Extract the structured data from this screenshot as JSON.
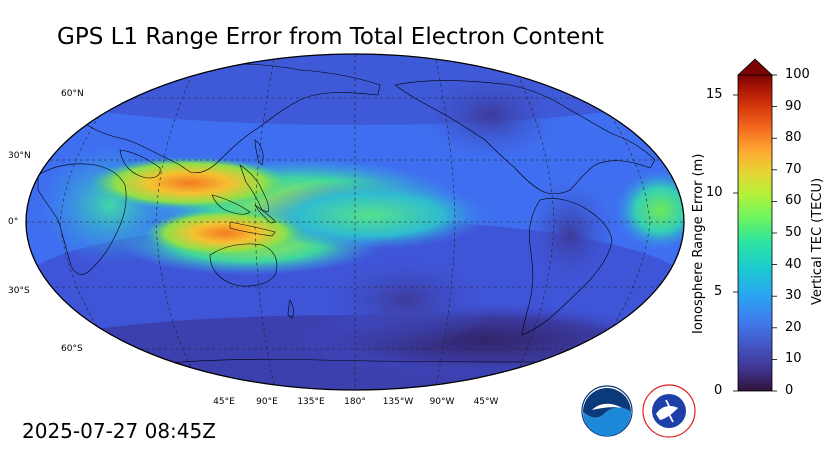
{
  "title": "GPS L1 Range Error from Total Electron Content",
  "timestamp": "2025-07-27 08:45Z",
  "map": {
    "projection": "Robinson",
    "central_longitude": "180°",
    "field": "Vertical TEC",
    "lat_labels": [
      "60°N",
      "30°N",
      "0°",
      "30°S",
      "60°S"
    ],
    "lon_labels": [
      "45°E",
      "90°E",
      "135°E",
      "180°",
      "135°W",
      "90°W",
      "45°W"
    ],
    "ocean_color": "#3355e0",
    "coastline_color": "#000000",
    "graticule_style": "dashed"
  },
  "colorbar": {
    "colormap": "turbo-like",
    "left_axis_label": "Ionosphere Range Error (m)",
    "left_ticks": [
      "0",
      "5",
      "10",
      "15"
    ],
    "right_axis_label": "Vertical TEC (TECU)",
    "right_ticks": [
      "0",
      "10",
      "20",
      "30",
      "40",
      "50",
      "60",
      "70",
      "80",
      "90",
      "100"
    ],
    "extend": "max",
    "vmin": 0,
    "vmax": 100
  },
  "logos": [
    {
      "name": "NOAA",
      "text": "NOAA",
      "colors": [
        "#0b3a7a",
        "#1e88d8"
      ]
    },
    {
      "name": "National Weather Service",
      "text": "NATIONAL WEATHER SERVICE",
      "colors": [
        "#e01c1c",
        "#1d3fa8"
      ]
    }
  ]
}
